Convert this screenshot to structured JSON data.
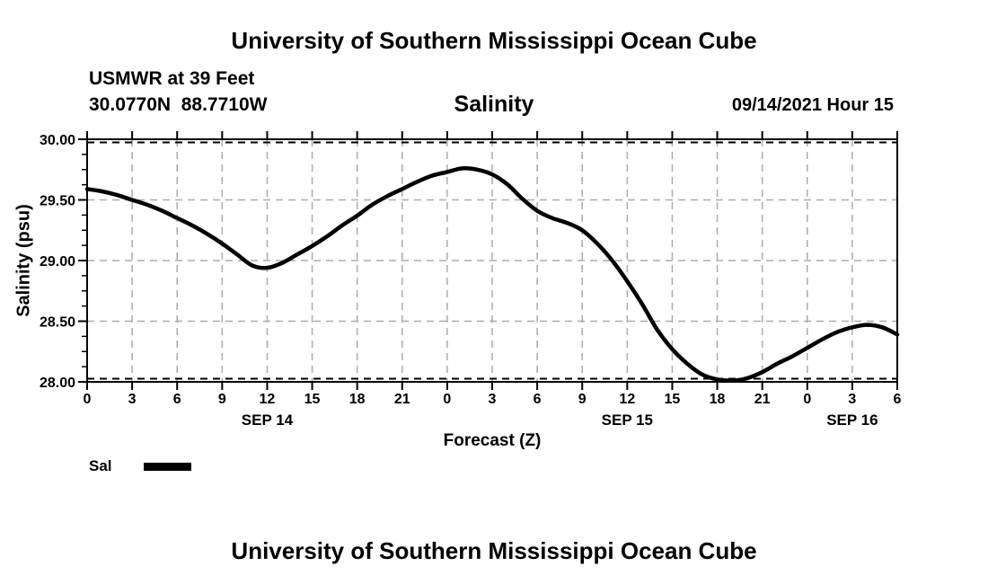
{
  "header": {
    "title": "University of Southern Mississippi Ocean Cube",
    "station": "USMWR at 39 Feet",
    "coordinates": "30.0770N  88.7710W",
    "plot_title": "Salinity",
    "datetime": "09/14/2021 Hour 15"
  },
  "footer": {
    "title": "University of Southern Mississippi Ocean Cube"
  },
  "legend": {
    "label": "Sal",
    "swatch_color": "#000000",
    "position": "bottom-left"
  },
  "chart_data": {
    "type": "line",
    "title": "Salinity",
    "xlabel": "Forecast (Z)",
    "ylabel": "Salinity (psu)",
    "xlim": [
      0,
      54
    ],
    "ylim": [
      28.0,
      30.0
    ],
    "grid": true,
    "grid_color": "#ababab",
    "edge_grid_color": "#000000",
    "frame_color": "#000000",
    "line_color": "#000000",
    "x_tick_interval_hours": 3,
    "x_ticks_hours": [
      0,
      3,
      6,
      9,
      12,
      15,
      18,
      21,
      24,
      27,
      30,
      33,
      36,
      39,
      42,
      45,
      48,
      51,
      54
    ],
    "x_tick_labels": [
      "0",
      "3",
      "6",
      "9",
      "12",
      "15",
      "18",
      "21",
      "0",
      "3",
      "6",
      "9",
      "12",
      "15",
      "18",
      "21",
      "0",
      "3",
      "6"
    ],
    "y_ticks": [
      30.0,
      29.5,
      29.0,
      28.5,
      28.0
    ],
    "y_tick_labels": [
      "30.00",
      "29.50",
      "29.00",
      "28.50",
      "28.00"
    ],
    "y_minor_tick_step": 0.125,
    "day_labels": [
      {
        "label": "SEP 14",
        "hour": 12
      },
      {
        "label": "SEP 15",
        "hour": 36
      },
      {
        "label": "SEP 16",
        "hour": 51
      }
    ],
    "series": [
      {
        "name": "Sal",
        "x": [
          0,
          1,
          2,
          3,
          4,
          5,
          6,
          7,
          8,
          9,
          10,
          11,
          12,
          13,
          14,
          15,
          16,
          17,
          18,
          19,
          20,
          21,
          22,
          23,
          24,
          25,
          26,
          27,
          28,
          29,
          30,
          31,
          32,
          33,
          34,
          35,
          36,
          37,
          38,
          39,
          40,
          41,
          42,
          43,
          44,
          45,
          46,
          47,
          48,
          49,
          50,
          51,
          52,
          53,
          54
        ],
        "values": [
          29.59,
          29.57,
          29.54,
          29.5,
          29.46,
          29.41,
          29.35,
          29.29,
          29.22,
          29.14,
          29.05,
          28.96,
          28.94,
          28.98,
          29.05,
          29.12,
          29.2,
          29.29,
          29.37,
          29.46,
          29.53,
          29.59,
          29.65,
          29.7,
          29.73,
          29.76,
          29.75,
          29.71,
          29.63,
          29.51,
          29.41,
          29.35,
          29.31,
          29.25,
          29.14,
          29.0,
          28.83,
          28.64,
          28.43,
          28.27,
          28.15,
          28.06,
          28.02,
          28.01,
          28.03,
          28.08,
          28.15,
          28.21,
          28.28,
          28.35,
          28.41,
          28.45,
          28.47,
          28.45,
          28.39
        ]
      }
    ]
  }
}
